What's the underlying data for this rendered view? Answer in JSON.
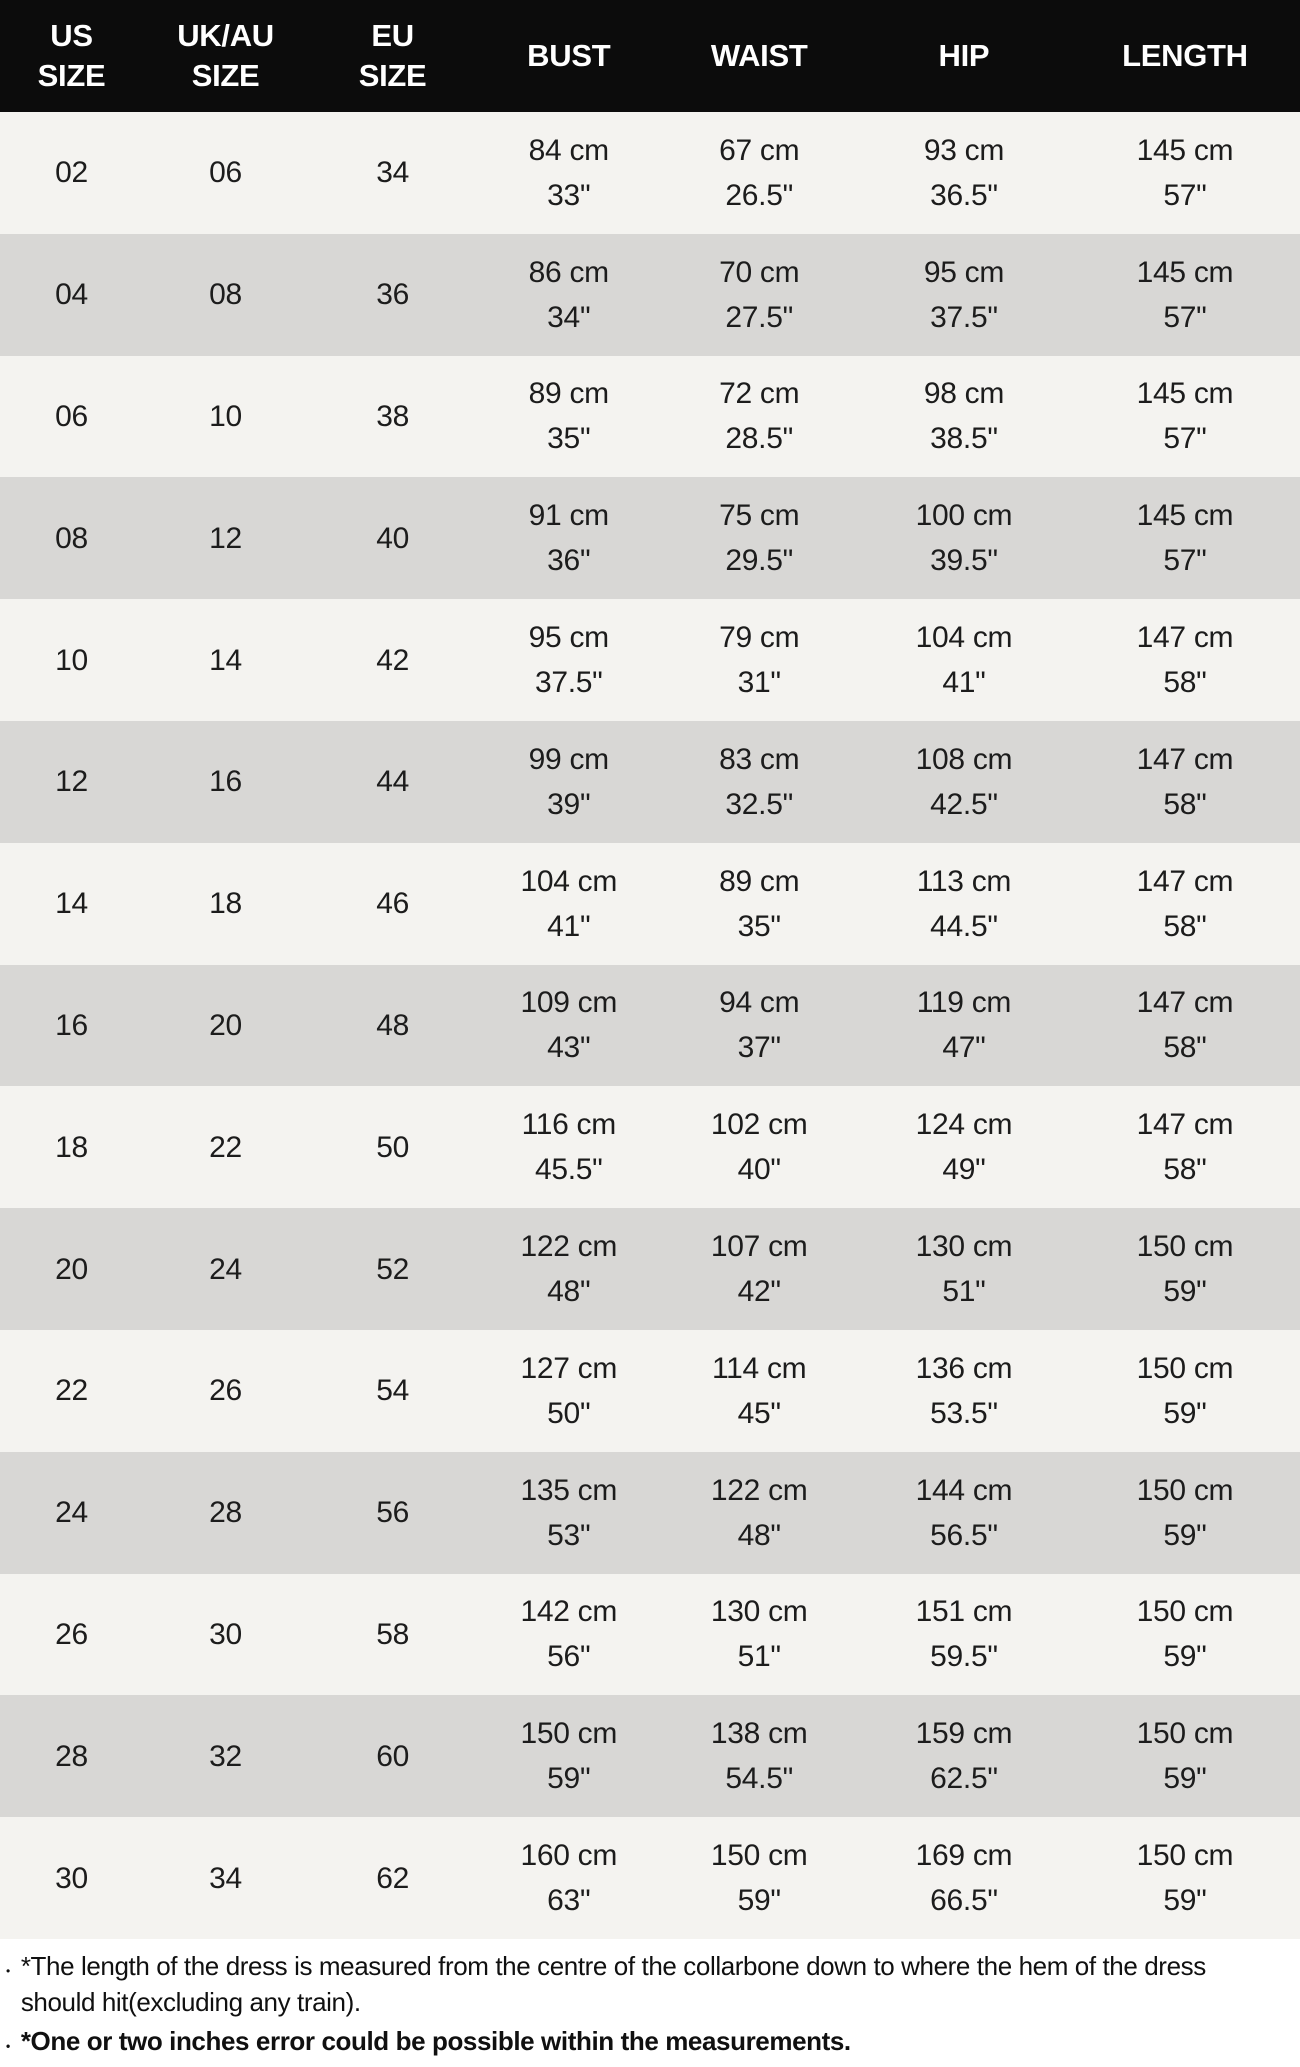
{
  "chart_data": {
    "type": "table",
    "title": "",
    "columns": [
      {
        "id": "us-size",
        "label": "US\nSIZE"
      },
      {
        "id": "uk-au-size",
        "label": "UK/AU\nSIZE"
      },
      {
        "id": "eu-size",
        "label": "EU\nSIZE"
      },
      {
        "id": "bust",
        "label": "BUST"
      },
      {
        "id": "waist",
        "label": "WAIST"
      },
      {
        "id": "hip",
        "label": "HIP"
      },
      {
        "id": "length",
        "label": "LENGTH"
      }
    ],
    "rows": [
      [
        "02",
        "06",
        "34",
        "84 cm\n33\"",
        "67 cm\n26.5\"",
        "93 cm\n36.5\"",
        "145 cm\n57\""
      ],
      [
        "04",
        "08",
        "36",
        "86 cm\n34\"",
        "70 cm\n27.5\"",
        "95 cm\n37.5\"",
        "145 cm\n57\""
      ],
      [
        "06",
        "10",
        "38",
        "89 cm\n35\"",
        "72 cm\n28.5\"",
        "98 cm\n38.5\"",
        "145 cm\n57\""
      ],
      [
        "08",
        "12",
        "40",
        "91 cm\n36\"",
        "75 cm\n29.5\"",
        "100 cm\n39.5\"",
        "145 cm\n57\""
      ],
      [
        "10",
        "14",
        "42",
        "95 cm\n37.5\"",
        "79 cm\n31\"",
        "104 cm\n41\"",
        "147 cm\n58\""
      ],
      [
        "12",
        "16",
        "44",
        "99 cm\n39\"",
        "83 cm\n32.5\"",
        "108 cm\n42.5\"",
        "147 cm\n58\""
      ],
      [
        "14",
        "18",
        "46",
        "104 cm\n41\"",
        "89 cm\n35\"",
        "113 cm\n44.5\"",
        "147 cm\n58\""
      ],
      [
        "16",
        "20",
        "48",
        "109 cm\n43\"",
        "94 cm\n37\"",
        "119 cm\n47\"",
        "147 cm\n58\""
      ],
      [
        "18",
        "22",
        "50",
        "116 cm\n45.5\"",
        "102 cm\n40\"",
        "124 cm\n49\"",
        "147 cm\n58\""
      ],
      [
        "20",
        "24",
        "52",
        "122 cm\n48\"",
        "107 cm\n42\"",
        "130 cm\n51\"",
        "150 cm\n59\""
      ],
      [
        "22",
        "26",
        "54",
        "127 cm\n50\"",
        "114 cm\n45\"",
        "136 cm\n53.5\"",
        "150 cm\n59\""
      ],
      [
        "24",
        "28",
        "56",
        "135 cm\n53\"",
        "122 cm\n48\"",
        "144 cm\n56.5\"",
        "150 cm\n59\""
      ],
      [
        "26",
        "30",
        "58",
        "142 cm\n56\"",
        "130 cm\n51\"",
        "151 cm\n59.5\"",
        "150 cm\n59\""
      ],
      [
        "28",
        "32",
        "60",
        "150 cm\n59\"",
        "138 cm\n54.5\"",
        "159 cm\n62.5\"",
        "150 cm\n59\""
      ],
      [
        "30",
        "34",
        "62",
        "160 cm\n63\"",
        "150 cm\n59\"",
        "169 cm\n66.5\"",
        "150 cm\n59\""
      ]
    ],
    "layout": {
      "header_position": "top",
      "grid": false,
      "row_striping": "alternating"
    }
  },
  "notes_bullet": "•",
  "notes": [
    {
      "text": "*The length of the dress is measured from the centre of the collarbone down to where the hem of the dress\nshould hit(excluding any train).",
      "bold": false
    },
    {
      "text": "*One or two inches error could be possible within the measurements.",
      "bold": true
    }
  ],
  "colors": {
    "header_bg": "#0c0c0c",
    "header_text": "#ffffff",
    "row_light": "#f4f3f0",
    "row_dark": "#d8d7d5",
    "cell_text": "#1c1c1c",
    "footer_bg": "#ffffff",
    "note_text": "#101010"
  }
}
